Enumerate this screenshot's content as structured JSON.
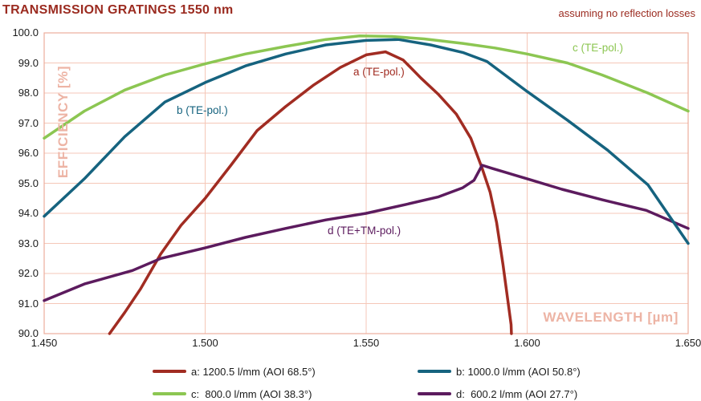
{
  "colors": {
    "title": "#9B2B20",
    "grid": "#F5C7B8",
    "frame": "#EDAE9C",
    "axis_label": "#EDB4A5",
    "tick": "#1A1A1A",
    "legend_text": "#1B1B1B",
    "background": "#FFFFFF"
  },
  "chart_data": {
    "type": "line",
    "title": "TRANSMISSION GRATINGS 1550 nm",
    "annotation": "assuming no reflection losses",
    "xlabel": "WAVELENGTH [µm]",
    "ylabel": "EFFICIENCY [%]",
    "xlim": [
      1.45,
      1.65
    ],
    "ylim": [
      90.0,
      100.0
    ],
    "xticks": [
      "1.450",
      "1.500",
      "1.550",
      "1.600",
      "1.650"
    ],
    "yticks": [
      "100.0",
      "99.0",
      "98.0",
      "97.0",
      "96.0",
      "95.0",
      "94.0",
      "93.0",
      "92.0",
      "91.0",
      "90.0"
    ],
    "grid": true,
    "legend_position": "bottom",
    "series": [
      {
        "id": "a",
        "name": "a: 1200.5 l/mm (AOI 68.5°)",
        "curve_label": "a (TE-pol.)",
        "color": "#A12C22",
        "points": [
          [
            1.4703,
            90.0
          ],
          [
            1.475,
            90.7
          ],
          [
            1.48,
            91.5
          ],
          [
            1.4862,
            92.65
          ],
          [
            1.4925,
            93.6
          ],
          [
            1.5,
            94.5
          ],
          [
            1.508,
            95.6
          ],
          [
            1.5161,
            96.75
          ],
          [
            1.525,
            97.55
          ],
          [
            1.5335,
            98.25
          ],
          [
            1.542,
            98.85
          ],
          [
            1.55,
            99.27
          ],
          [
            1.556,
            99.37
          ],
          [
            1.5615,
            99.1
          ],
          [
            1.567,
            98.5
          ],
          [
            1.5725,
            97.95
          ],
          [
            1.578,
            97.3
          ],
          [
            1.5825,
            96.5
          ],
          [
            1.586,
            95.5
          ],
          [
            1.5885,
            94.7
          ],
          [
            1.5905,
            93.7
          ],
          [
            1.5925,
            92.3
          ],
          [
            1.595,
            90.3
          ],
          [
            1.5951,
            90.0
          ]
        ]
      },
      {
        "id": "b",
        "name": "b: 1000.0 l/mm (AOI 50.8°)",
        "curve_label": "b (TE-pol.)",
        "color": "#16637F",
        "points": [
          [
            1.45,
            93.9
          ],
          [
            1.4625,
            95.15
          ],
          [
            1.475,
            96.55
          ],
          [
            1.4875,
            97.7
          ],
          [
            1.5,
            98.35
          ],
          [
            1.5125,
            98.9
          ],
          [
            1.525,
            99.3
          ],
          [
            1.5375,
            99.6
          ],
          [
            1.55,
            99.75
          ],
          [
            1.56,
            99.78
          ],
          [
            1.57,
            99.6
          ],
          [
            1.58,
            99.35
          ],
          [
            1.5875,
            99.05
          ],
          [
            1.6,
            98.05
          ],
          [
            1.6125,
            97.1
          ],
          [
            1.625,
            96.1
          ],
          [
            1.6375,
            94.95
          ],
          [
            1.65,
            93.0
          ]
        ]
      },
      {
        "id": "c",
        "name": "c:  800.0 l/mm (AOI 38.3°)",
        "curve_label": "c (TE-pol.)",
        "color": "#8CC652",
        "points": [
          [
            1.45,
            96.5
          ],
          [
            1.4625,
            97.4
          ],
          [
            1.475,
            98.1
          ],
          [
            1.4875,
            98.6
          ],
          [
            1.5,
            98.97
          ],
          [
            1.5125,
            99.3
          ],
          [
            1.525,
            99.55
          ],
          [
            1.5375,
            99.78
          ],
          [
            1.548,
            99.9
          ],
          [
            1.558,
            99.88
          ],
          [
            1.568,
            99.8
          ],
          [
            1.58,
            99.65
          ],
          [
            1.59,
            99.5
          ],
          [
            1.6,
            99.3
          ],
          [
            1.6125,
            99.0
          ],
          [
            1.6233,
            98.6
          ],
          [
            1.6375,
            98.0
          ],
          [
            1.65,
            97.4
          ]
        ]
      },
      {
        "id": "d",
        "name": "d:  600.2 l/mm (AOI 27.7°)",
        "curve_label": "d (TE+TM-pol.)",
        "color": "#5C1B5E",
        "points": [
          [
            1.45,
            91.1
          ],
          [
            1.4625,
            91.65
          ],
          [
            1.4774,
            92.1
          ],
          [
            1.4862,
            92.5
          ],
          [
            1.5,
            92.85
          ],
          [
            1.5125,
            93.2
          ],
          [
            1.525,
            93.5
          ],
          [
            1.5375,
            93.78
          ],
          [
            1.55,
            94.0
          ],
          [
            1.5625,
            94.3
          ],
          [
            1.5725,
            94.55
          ],
          [
            1.58,
            94.85
          ],
          [
            1.5835,
            95.1
          ],
          [
            1.586,
            95.6
          ],
          [
            1.589,
            95.5
          ],
          [
            1.6,
            95.15
          ],
          [
            1.6108,
            94.8
          ],
          [
            1.6233,
            94.45
          ],
          [
            1.637,
            94.1
          ],
          [
            1.65,
            93.5
          ]
        ]
      }
    ]
  }
}
